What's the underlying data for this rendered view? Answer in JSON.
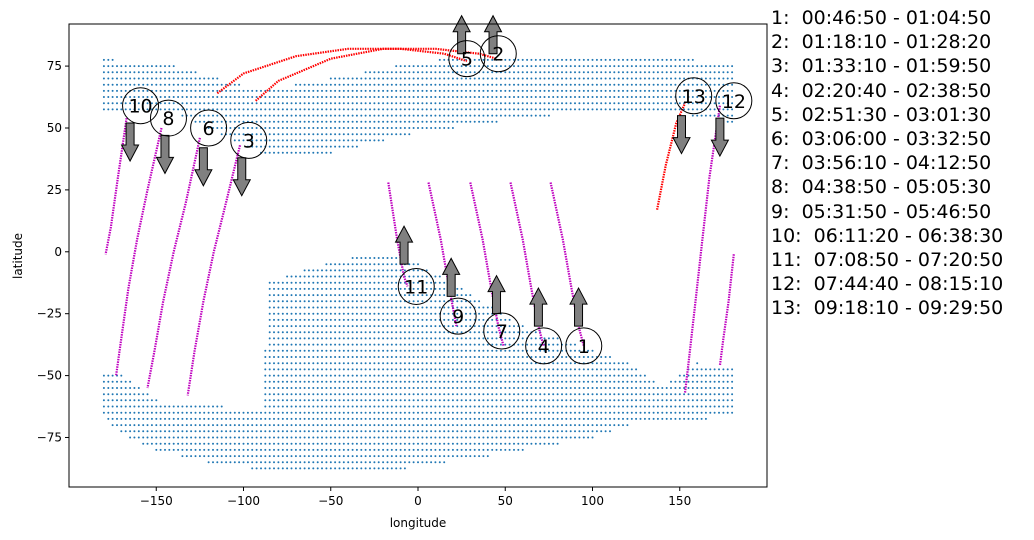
{
  "chart_data": {
    "type": "scatter",
    "xlabel": "longitude",
    "ylabel": "latitude",
    "xlim": [
      -200,
      200
    ],
    "ylim": [
      -95,
      92
    ],
    "xticks": [
      -150,
      -100,
      -50,
      0,
      50,
      100,
      150
    ],
    "yticks": [
      -75,
      -50,
      -25,
      0,
      25,
      50,
      75
    ],
    "tick_labels_x": [
      "−150",
      "−100",
      "−50",
      "0",
      "50",
      "100",
      "150"
    ],
    "tick_labels_y": [
      "−75",
      "−50",
      "−25",
      "0",
      "25",
      "50",
      "75"
    ],
    "colors": {
      "grid_points": "#1f77b4",
      "descending_track": "#bf00bf",
      "ascending_track": "#ff0000",
      "arrow": "#808080"
    },
    "grid_points": {
      "spacing": 2.5,
      "north_region": {
        "lon_range": [
          -180,
          180
        ],
        "lat_bounds": [
          [
            -180,
            56,
            78
          ],
          [
            -140,
            56,
            75
          ],
          [
            -115,
            48,
            70
          ],
          [
            -90,
            40,
            65
          ],
          [
            -50,
            40,
            70
          ],
          [
            0,
            48,
            77
          ],
          [
            50,
            53,
            79
          ],
          [
            100,
            57,
            79
          ],
          [
            150,
            56,
            78
          ],
          [
            180,
            52,
            76
          ]
        ]
      },
      "south_region": {
        "lon_range": [
          -180,
          180
        ],
        "lat_bounds": [
          [
            -180,
            -66,
            -48
          ],
          [
            -170,
            -74,
            -50
          ],
          [
            -150,
            -80,
            -60
          ],
          [
            -120,
            -85,
            -62
          ],
          [
            -90,
            -88,
            -64
          ],
          [
            -85,
            -88,
            -12
          ],
          [
            -60,
            -88,
            -6
          ],
          [
            -30,
            -88,
            -1
          ],
          [
            -10,
            -88,
            -1
          ],
          [
            0,
            -86,
            -5
          ],
          [
            30,
            -84,
            -17
          ],
          [
            60,
            -80,
            -30
          ],
          [
            100,
            -75,
            -40
          ],
          [
            120,
            -70,
            -45
          ],
          [
            140,
            -68,
            -55
          ],
          [
            160,
            -68,
            -45
          ],
          [
            180,
            -66,
            -47
          ]
        ]
      }
    },
    "orbits": [
      {
        "label": "1",
        "time": "00:46:50 - 01:04:50",
        "direction": "ascending",
        "track": [
          [
            76,
            28
          ],
          [
            83,
            5
          ],
          [
            88,
            -15
          ],
          [
            92,
            -30
          ],
          [
            95,
            -38
          ]
        ],
        "label_pos": [
          95,
          -38
        ],
        "arrow": {
          "lon": 92,
          "lat": -30,
          "dir": "up"
        }
      },
      {
        "label": "2",
        "time": "01:18:10 - 01:28:20",
        "direction": "ascending",
        "track": [
          [
            -93,
            61
          ],
          [
            -80,
            69
          ],
          [
            -50,
            78
          ],
          [
            -20,
            82
          ],
          [
            10,
            82
          ],
          [
            35,
            80
          ],
          [
            45,
            78
          ]
        ],
        "label_pos": [
          46,
          80
        ],
        "arrow": {
          "lon": 43,
          "lat": 80,
          "dir": "up"
        }
      },
      {
        "label": "3",
        "time": "01:33:10 - 01:59:50",
        "direction": "descending",
        "track": [
          [
            -102,
            43
          ],
          [
            -110,
            20
          ],
          [
            -117,
            0
          ],
          [
            -123,
            -20
          ],
          [
            -128,
            -40
          ],
          [
            -132,
            -58
          ]
        ],
        "label_pos": [
          -97,
          45
        ],
        "arrow": {
          "lon": -101,
          "lat": 38,
          "dir": "down"
        }
      },
      {
        "label": "4",
        "time": "02:20:40 - 02:38:50",
        "direction": "ascending",
        "track": [
          [
            53,
            28
          ],
          [
            60,
            5
          ],
          [
            65,
            -15
          ],
          [
            69,
            -30
          ],
          [
            72,
            -38
          ]
        ],
        "label_pos": [
          72,
          -38
        ],
        "arrow": {
          "lon": 69,
          "lat": -30,
          "dir": "up"
        }
      },
      {
        "label": "5",
        "time": "02:51:30 - 03:01:30",
        "direction": "ascending",
        "track": [
          [
            -115,
            64
          ],
          [
            -100,
            72
          ],
          [
            -70,
            79
          ],
          [
            -40,
            82
          ],
          [
            -10,
            82
          ],
          [
            15,
            80
          ],
          [
            28,
            77
          ]
        ],
        "label_pos": [
          28,
          78
        ],
        "arrow": {
          "lon": 25,
          "lat": 80,
          "dir": "up"
        }
      },
      {
        "label": "6",
        "time": "03:06:00 - 03:32:50",
        "direction": "descending",
        "track": [
          [
            -125,
            46
          ],
          [
            -133,
            20
          ],
          [
            -140,
            0
          ],
          [
            -146,
            -20
          ],
          [
            -151,
            -40
          ],
          [
            -155,
            -55
          ]
        ],
        "label_pos": [
          -120,
          50
        ],
        "arrow": {
          "lon": -123,
          "lat": 42,
          "dir": "down"
        }
      },
      {
        "label": "7",
        "time": "03:56:10 - 04:12:50",
        "direction": "ascending",
        "track": [
          [
            30,
            28
          ],
          [
            37,
            5
          ],
          [
            42,
            -15
          ],
          [
            46,
            -30
          ],
          [
            49,
            -38
          ]
        ],
        "label_pos": [
          48,
          -32
        ],
        "arrow": {
          "lon": 45,
          "lat": -25,
          "dir": "up"
        }
      },
      {
        "label": "8",
        "time": "04:38:50 - 05:05:30",
        "direction": "descending",
        "track": [
          [
            -147,
            50
          ],
          [
            -155,
            25
          ],
          [
            -161,
            5
          ],
          [
            -166,
            -15
          ],
          [
            -170,
            -35
          ],
          [
            -173,
            -50
          ]
        ],
        "label_pos": [
          -143,
          54
        ],
        "arrow": {
          "lon": -145,
          "lat": 47,
          "dir": "down"
        }
      },
      {
        "label": "9",
        "time": "05:31:50 - 05:46:50",
        "direction": "ascending",
        "track": [
          [
            6,
            28
          ],
          [
            13,
            5
          ],
          [
            18,
            -15
          ],
          [
            22,
            -30
          ]
        ],
        "label_pos": [
          23,
          -26
        ],
        "arrow": {
          "lon": 19,
          "lat": -18,
          "dir": "up"
        }
      },
      {
        "label": "10",
        "time": "06:11:20 - 06:38:30",
        "direction": "descending",
        "track": [
          [
            -167,
            54
          ],
          [
            -172,
            30
          ],
          [
            -176,
            10
          ],
          [
            -179,
            -1
          ]
        ],
        "label_pos": [
          -159,
          59
        ],
        "arrow": {
          "lon": -165,
          "lat": 52,
          "dir": "down"
        }
      },
      {
        "label": "11",
        "time": "07:08:50 - 07:20:50",
        "direction": "ascending",
        "track": [
          [
            -17,
            28
          ],
          [
            -12,
            5
          ],
          [
            -8,
            -10
          ],
          [
            -6,
            -14
          ]
        ],
        "label_pos": [
          -1,
          -14
        ],
        "arrow": {
          "lon": -8,
          "lat": -5,
          "dir": "up"
        }
      },
      {
        "label": "12",
        "time": "07:44:40 - 08:15:10",
        "direction": "descending",
        "track": [
          [
            173,
            59
          ],
          [
            167,
            30
          ],
          [
            163,
            5
          ],
          [
            159,
            -20
          ],
          [
            155,
            -45
          ],
          [
            153,
            -57
          ]
        ],
        "label_pos": [
          181,
          61
        ],
        "arrow": {
          "lon": 173,
          "lat": 54,
          "dir": "down"
        }
      },
      {
        "label": "13",
        "time": "09:18:10 - 09:29:50",
        "direction": "ascending",
        "track": [
          [
            137,
            17
          ],
          [
            142,
            35
          ],
          [
            148,
            52
          ],
          [
            153,
            60
          ]
        ],
        "label_pos": [
          158,
          63
        ],
        "arrow": {
          "lon": 151,
          "lat": 55,
          "dir": "down"
        }
      },
      {
        "label": "",
        "time": "",
        "direction": "descending",
        "track": [
          [
            181,
            -1
          ],
          [
            178,
            -20
          ],
          [
            175,
            -35
          ],
          [
            173,
            -46
          ]
        ],
        "label_pos": null,
        "arrow": null
      }
    ],
    "legend_placement": "right"
  }
}
